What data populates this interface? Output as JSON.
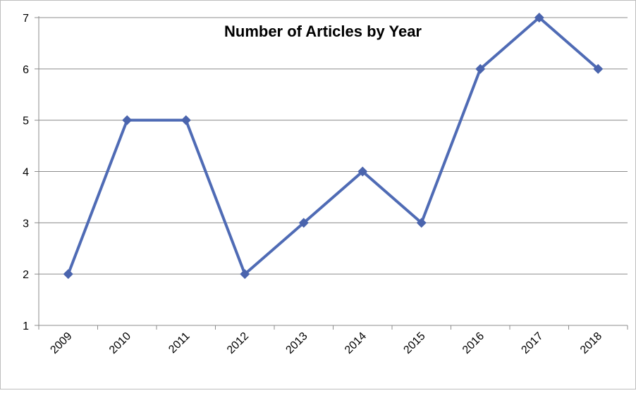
{
  "chart_data": {
    "type": "line",
    "title": "Number of Articles by Year",
    "xlabel": "",
    "ylabel": "",
    "categories": [
      "2009",
      "2010",
      "2011",
      "2012",
      "2013",
      "2014",
      "2015",
      "2016",
      "2017",
      "2018"
    ],
    "series": [
      {
        "values": [
          2,
          5,
          5,
          2,
          3,
          4,
          3,
          6,
          7,
          6
        ]
      }
    ],
    "ylim": [
      1,
      7
    ],
    "yticks": [
      "1",
      "2",
      "3",
      "4",
      "5",
      "6",
      "7"
    ],
    "grid": true,
    "legend": "none",
    "colors": {
      "line": "#4f6bb5",
      "marker": "#4a64ad",
      "grid": "#8c8c8c",
      "axis": "#8c8c8c"
    }
  }
}
